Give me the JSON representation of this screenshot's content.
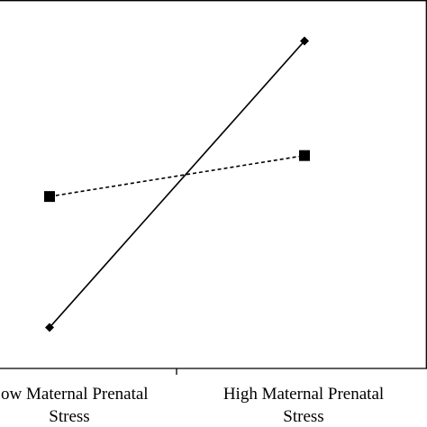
{
  "chart_data": {
    "type": "line",
    "categories": [
      [
        "Low Maternal Prenatal",
        "Stress"
      ],
      [
        "High Maternal Prenatal",
        "Stress"
      ]
    ],
    "series": [
      {
        "style": "solid",
        "marker": "diamond",
        "color": "#000000",
        "values": [
          1.0,
          8.0
        ]
      },
      {
        "style": "dashed",
        "marker": "square",
        "color": "#000000",
        "values": [
          4.2,
          5.2
        ]
      }
    ],
    "ylim": [
      0,
      9
    ],
    "grid": false,
    "legend": "none",
    "title": "",
    "xlabel": "",
    "ylabel": ""
  }
}
